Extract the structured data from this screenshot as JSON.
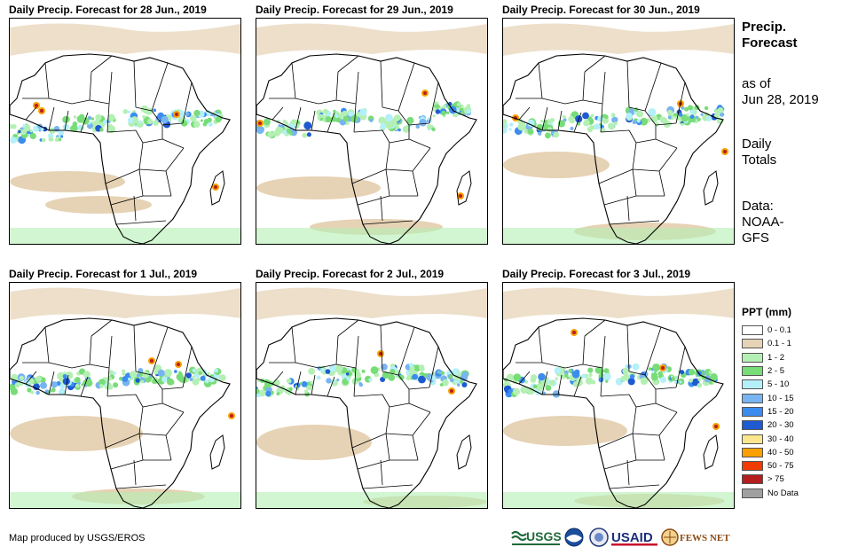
{
  "panels": [
    {
      "title": "Daily Precip. Forecast for 28 Jun., 2019",
      "variant": 0
    },
    {
      "title": "Daily Precip. Forecast for 29 Jun., 2019",
      "variant": 1
    },
    {
      "title": "Daily Precip. Forecast for 30 Jun., 2019",
      "variant": 2
    },
    {
      "title": "Daily Precip. Forecast for 1 Jul., 2019",
      "variant": 3
    },
    {
      "title": "Daily Precip. Forecast for 2 Jul., 2019",
      "variant": 4
    },
    {
      "title": "Daily Precip. Forecast for 3 Jul., 2019",
      "variant": 5
    }
  ],
  "sidebar": {
    "heading_line1": "Precip.",
    "heading_line2": "Forecast",
    "asof_line1": "as of",
    "asof_line2": "Jun 28, 2019",
    "totals_line1": "Daily",
    "totals_line2": "Totals",
    "data_line1": "Data:",
    "data_line2": "NOAA-",
    "data_line3": "GFS"
  },
  "legend": {
    "title": "PPT (mm)",
    "items": [
      {
        "label": "0 - 0.1",
        "color": "#ffffff"
      },
      {
        "label": "0.1 - 1",
        "color": "#e6d2b4"
      },
      {
        "label": "1 - 2",
        "color": "#b4f0b4"
      },
      {
        "label": "2 - 5",
        "color": "#78dc78"
      },
      {
        "label": "5 - 10",
        "color": "#b4f0fa"
      },
      {
        "label": "10 - 15",
        "color": "#78b4f0"
      },
      {
        "label": "15 - 20",
        "color": "#3c8cf0"
      },
      {
        "label": "20 - 30",
        "color": "#1e5ad2"
      },
      {
        "label": "30 - 40",
        "color": "#fae68c"
      },
      {
        "label": "40 - 50",
        "color": "#faa000"
      },
      {
        "label": "50 - 75",
        "color": "#f03c00"
      },
      {
        "label": "> 75",
        "color": "#b41e1e"
      },
      {
        "label": "No Data",
        "color": "#a0a0a0"
      }
    ]
  },
  "credit": "Map produced by USGS/EROS",
  "logos": {
    "usgs": "USGS",
    "usaid": "USAID",
    "fews": "FEWS NET"
  }
}
